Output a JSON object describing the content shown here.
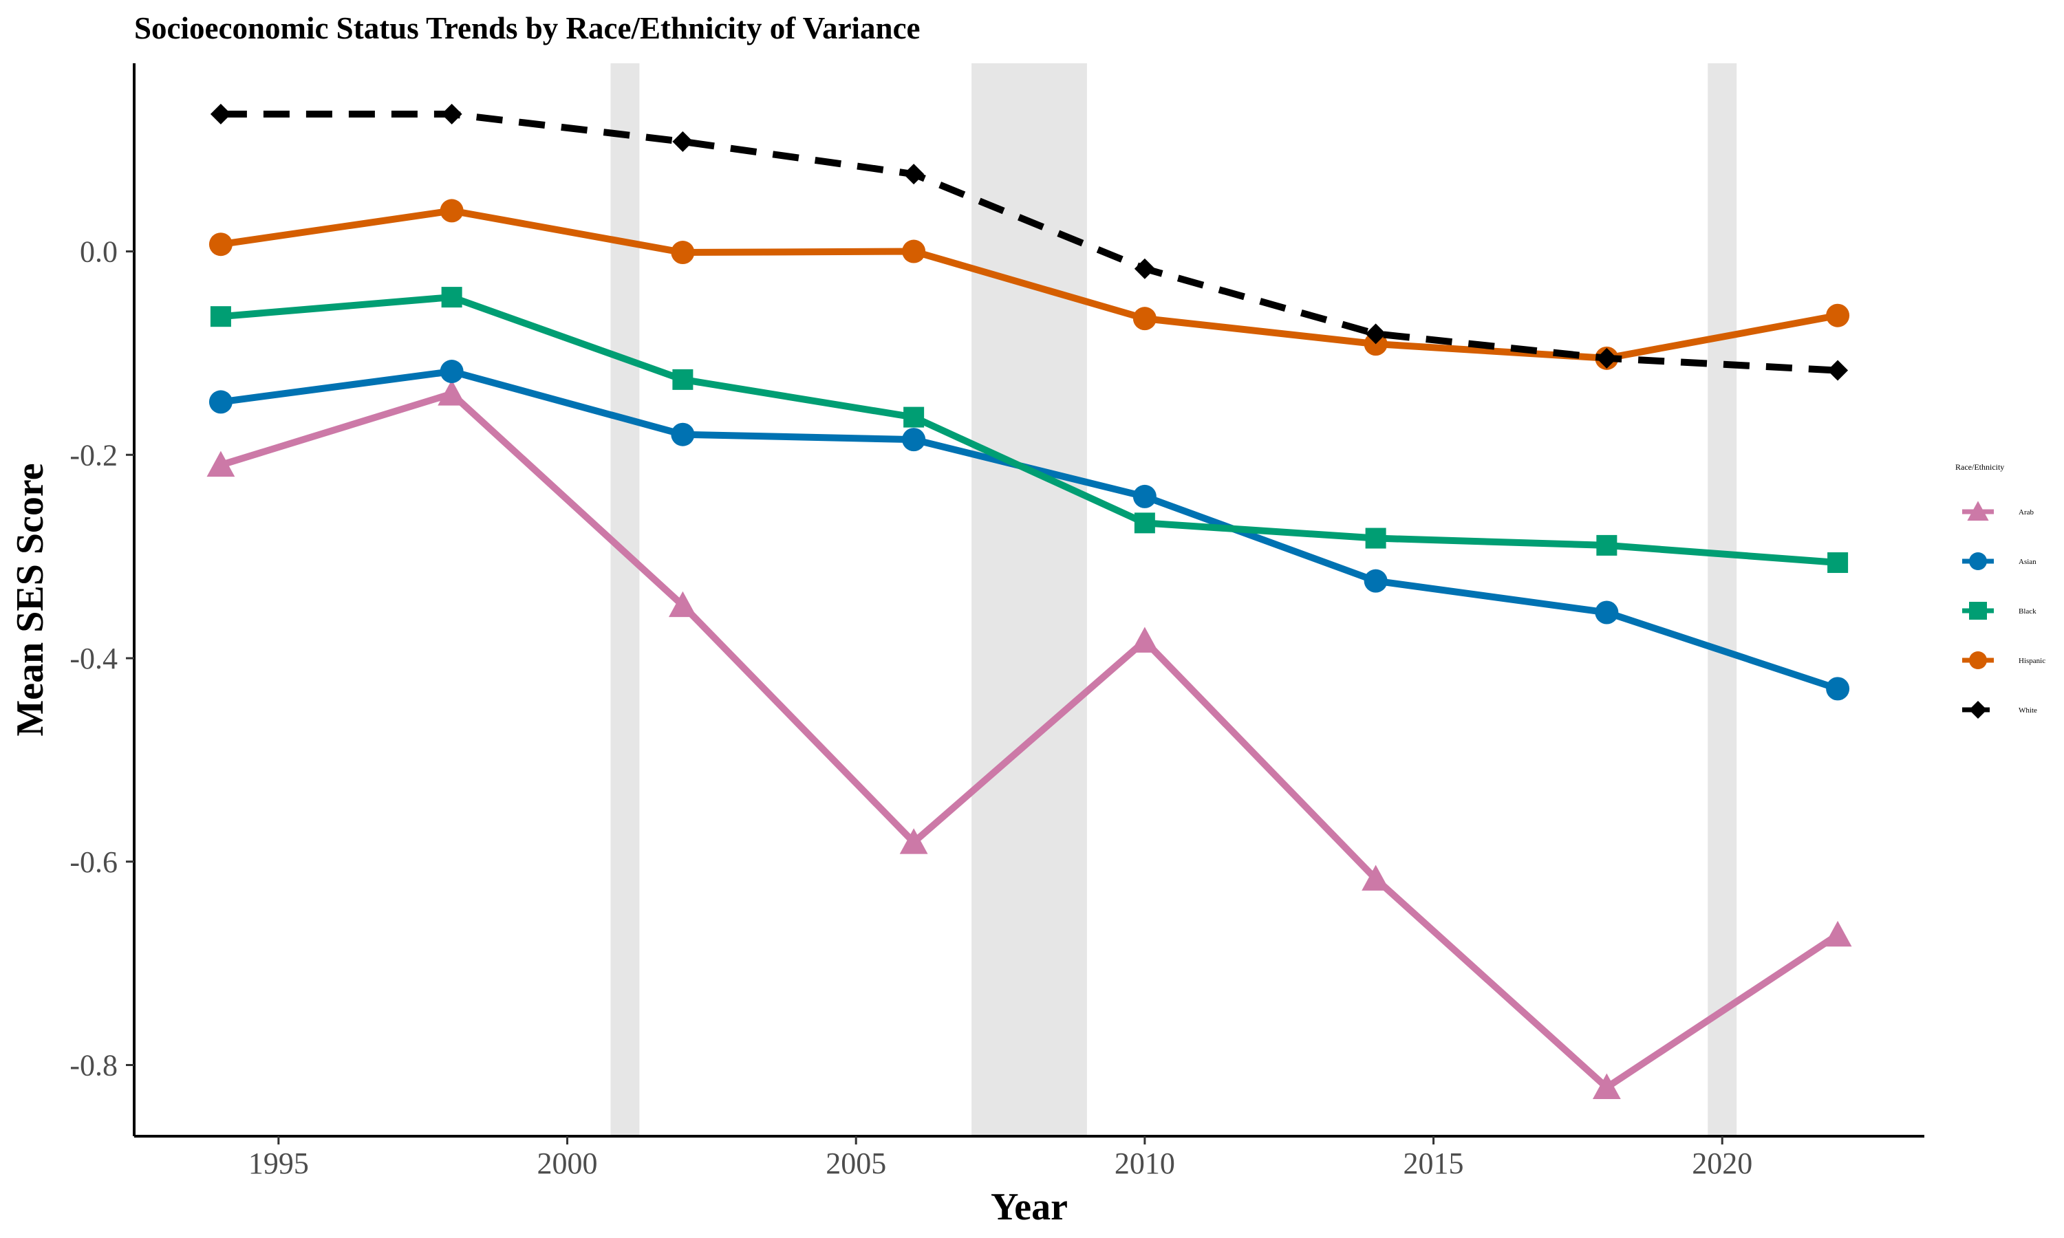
{
  "chart_data": {
    "type": "line",
    "title": "Socioeconomic Status Trends by Race/Ethnicity  of Variance",
    "xlabel": "Year",
    "ylabel": "Mean SES Score",
    "xlim": [
      1992.5,
      2023.5
    ],
    "ylim": [
      -0.87,
      0.185
    ],
    "x_ticks": [
      1995,
      2000,
      2005,
      2010,
      2015,
      2020
    ],
    "y_ticks": [
      0.0,
      -0.2,
      -0.4,
      -0.6,
      -0.8
    ],
    "y_tick_labels": [
      "0.0",
      "-0.2",
      "-0.4",
      "-0.6",
      "-0.8"
    ],
    "grid": false,
    "shaded_periods": [
      {
        "start": 2000.75,
        "end": 2001.25
      },
      {
        "start": 2007.0,
        "end": 2009.0
      },
      {
        "start": 2019.75,
        "end": 2020.25
      }
    ],
    "legend": {
      "title": "Race/Ethnicity",
      "placement": "right"
    },
    "x": [
      1994,
      1998,
      2002,
      2006,
      2010,
      2014,
      2018,
      2022
    ],
    "series": [
      {
        "name": "Arab",
        "color": "#CC79A7",
        "marker": "triangle",
        "dashed": false,
        "values": [
          -0.21,
          -0.14,
          -0.348,
          -0.581,
          -0.383,
          -0.617,
          -0.822,
          -0.672
        ]
      },
      {
        "name": "Asian",
        "color": "#0072B2",
        "marker": "circle",
        "dashed": false,
        "values": [
          -0.148,
          -0.118,
          -0.18,
          -0.185,
          -0.241,
          -0.324,
          -0.355,
          -0.43
        ]
      },
      {
        "name": "Black",
        "color": "#009E73",
        "marker": "square",
        "dashed": false,
        "values": [
          -0.064,
          -0.045,
          -0.126,
          -0.163,
          -0.267,
          -0.282,
          -0.289,
          -0.306
        ]
      },
      {
        "name": "Hispanic",
        "color": "#D55E00",
        "marker": "circle",
        "dashed": false,
        "values": [
          0.007,
          0.04,
          -0.001,
          0.0,
          -0.066,
          -0.091,
          -0.105,
          -0.063
        ]
      },
      {
        "name": "White",
        "color": "#000000",
        "marker": "diamond",
        "dashed": true,
        "values": [
          0.135,
          0.135,
          0.108,
          0.076,
          -0.017,
          -0.081,
          -0.105,
          -0.117
        ]
      }
    ]
  }
}
